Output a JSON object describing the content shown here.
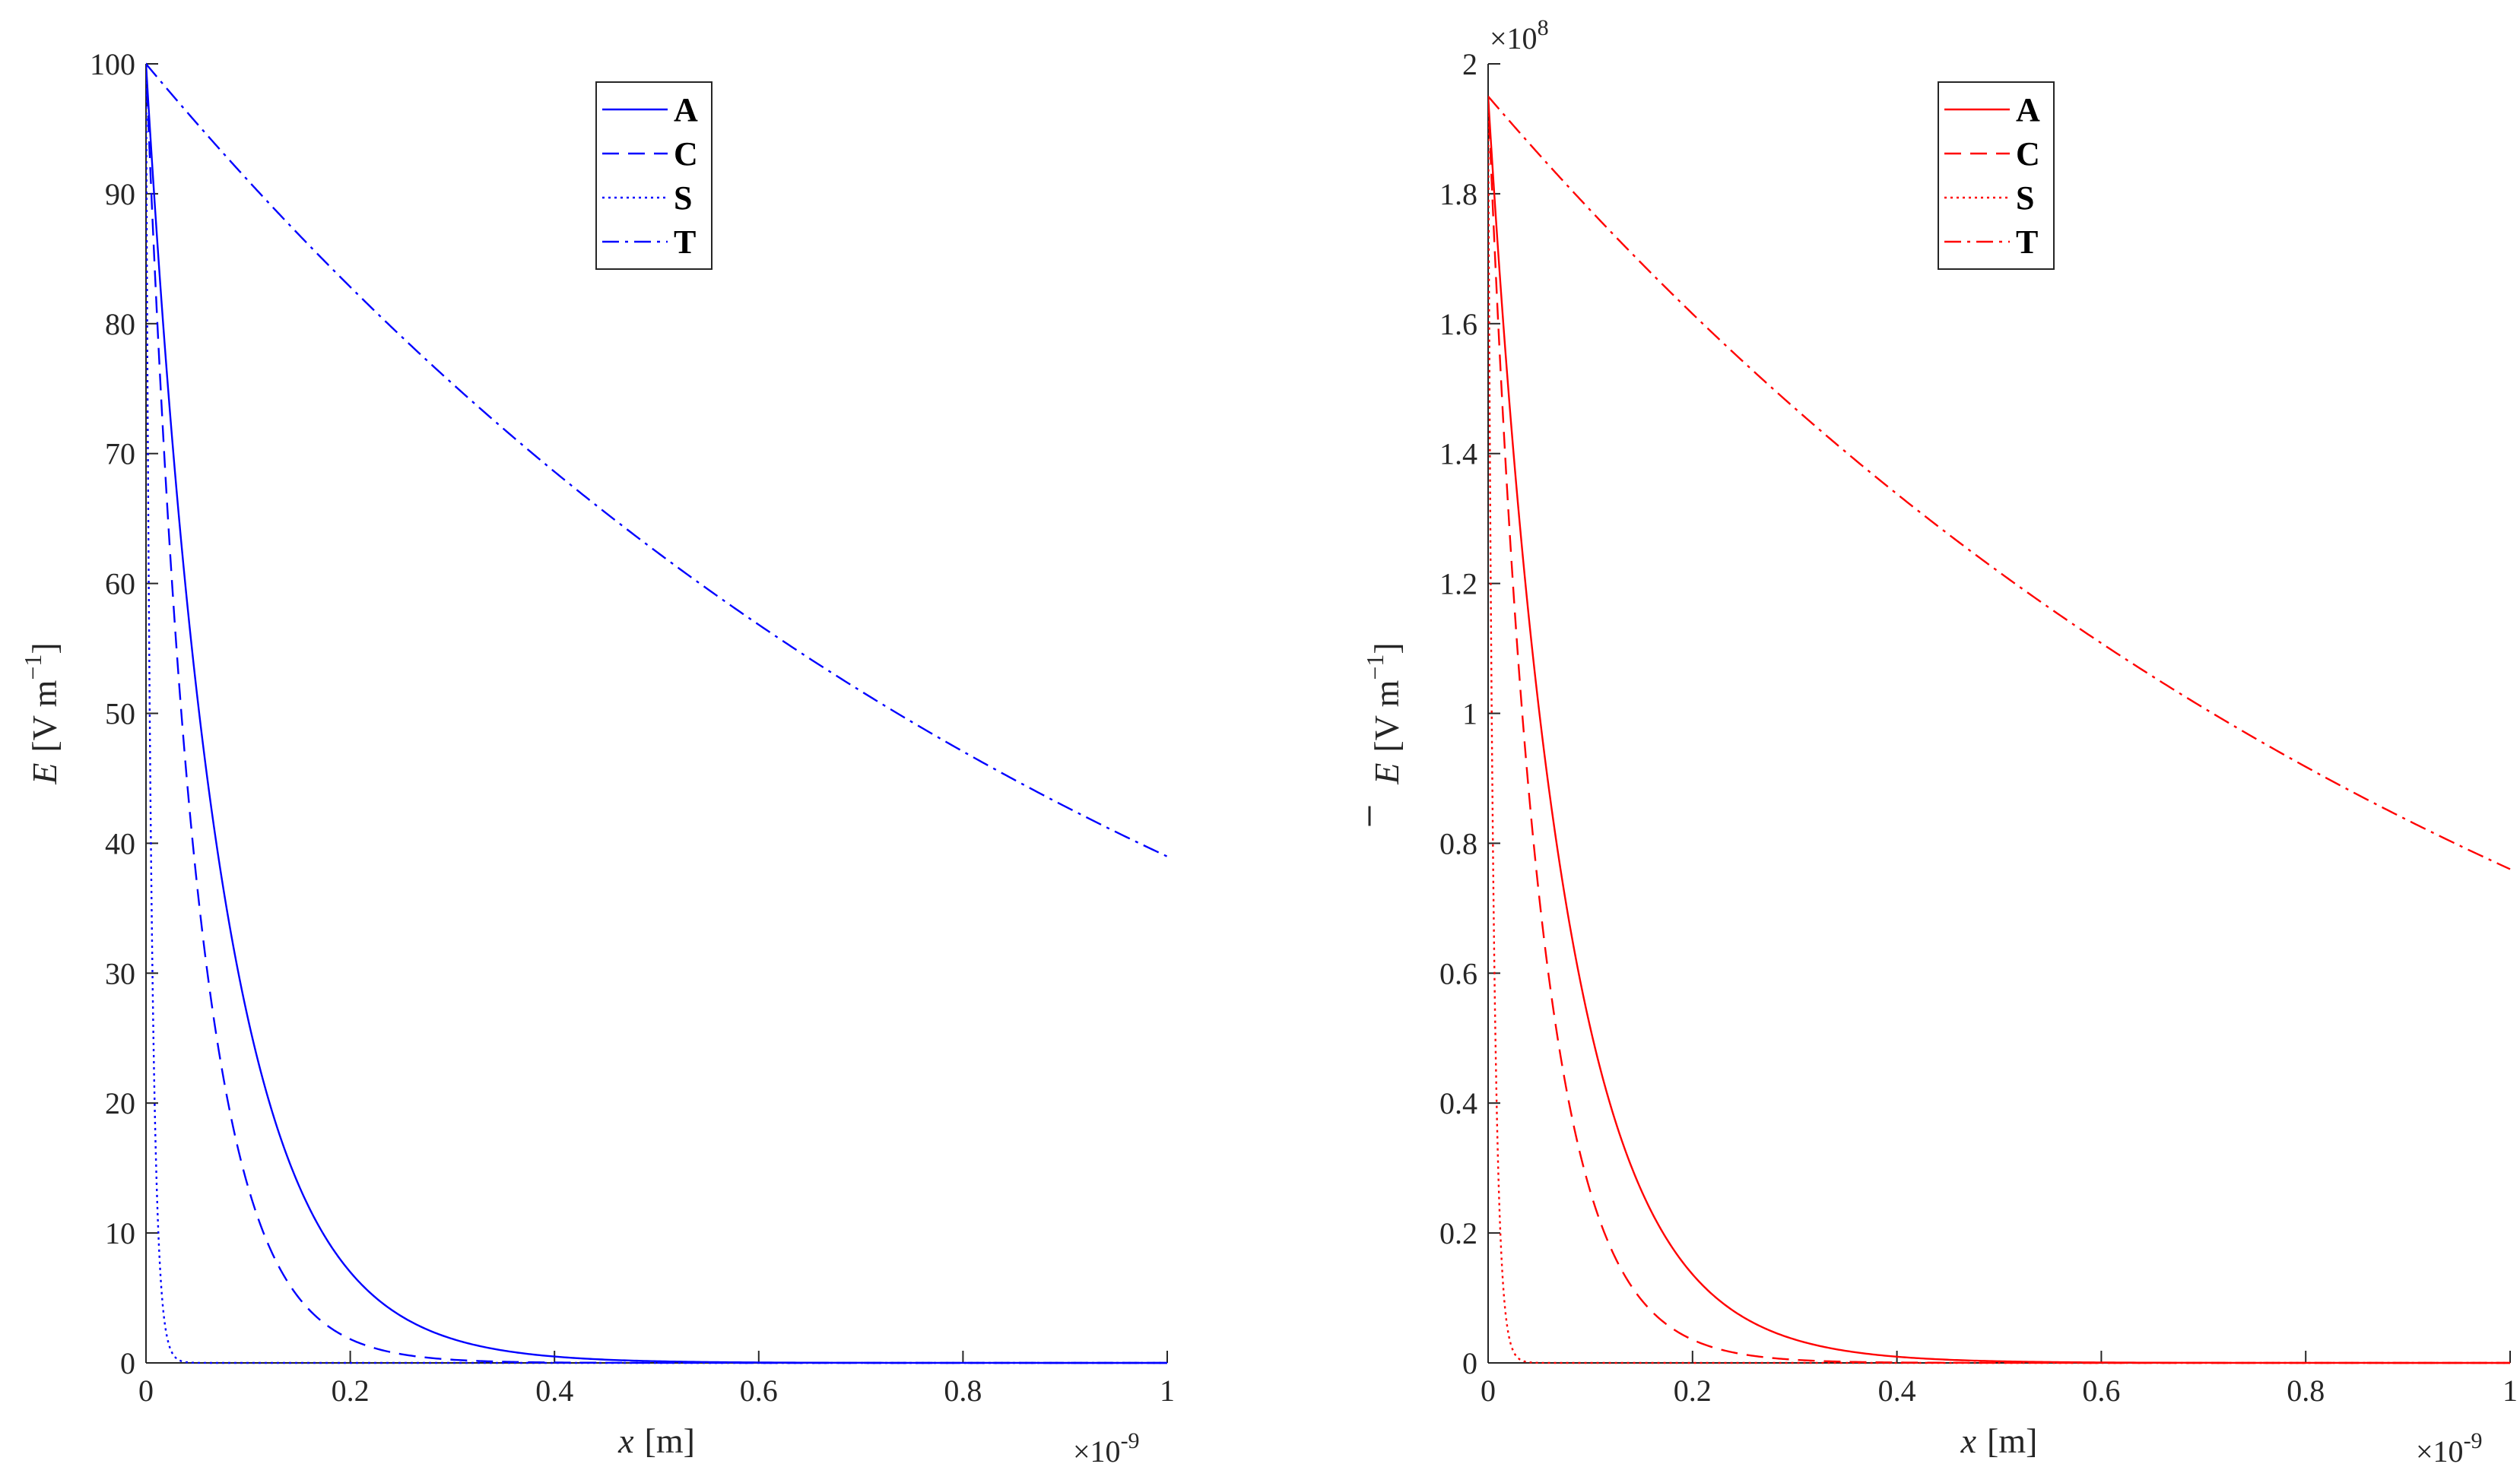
{
  "chart_data": [
    {
      "type": "line",
      "xlabel_var": "x",
      "xlabel_unit": "[m]",
      "ylabel_var": "E",
      "ylabel_unit_pre": "[V m",
      "ylabel_unit_sup": "−1",
      "ylabel_unit_post": "]",
      "ylabel_overline": false,
      "x_exponent_label": "×10",
      "x_exponent_sup": "-9",
      "y_exponent_label": "",
      "y_exponent_sup": "",
      "xlim": [
        0,
        1
      ],
      "ylim": [
        0,
        100
      ],
      "xticks": [
        0,
        0.2,
        0.4,
        0.6,
        0.8,
        1
      ],
      "xtick_labels": [
        "0",
        "0.2",
        "0.4",
        "0.6",
        "0.8",
        "1"
      ],
      "yticks": [
        0,
        10,
        20,
        30,
        40,
        50,
        60,
        70,
        80,
        90,
        100
      ],
      "ytick_labels": [
        "0",
        "10",
        "20",
        "30",
        "40",
        "50",
        "60",
        "70",
        "80",
        "90",
        "100"
      ],
      "color": "#0000ff",
      "legend_position": "top-center",
      "series": [
        {
          "name": "A",
          "style": "solid",
          "y0": 100,
          "decay": 13.3
        },
        {
          "name": "C",
          "style": "dashed",
          "y0": 100,
          "decay": 20
        },
        {
          "name": "S",
          "style": "dotted",
          "y0": 100,
          "decay": 190
        },
        {
          "name": "T",
          "style": "dashdot",
          "y0": 100,
          "decay": 0.942
        }
      ]
    },
    {
      "type": "line",
      "xlabel_var": "x",
      "xlabel_unit": "[m]",
      "ylabel_var": "E",
      "ylabel_unit_pre": "[V m",
      "ylabel_unit_sup": "−1",
      "ylabel_unit_post": "]",
      "ylabel_overline": true,
      "x_exponent_label": "×10",
      "x_exponent_sup": "-9",
      "y_exponent_label": "×10",
      "y_exponent_sup": "8",
      "xlim": [
        0,
        1
      ],
      "ylim": [
        0,
        2
      ],
      "xticks": [
        0,
        0.2,
        0.4,
        0.6,
        0.8,
        1
      ],
      "xtick_labels": [
        "0",
        "0.2",
        "0.4",
        "0.6",
        "0.8",
        "1"
      ],
      "yticks": [
        0,
        0.2,
        0.4,
        0.6,
        0.8,
        1,
        1.2,
        1.4,
        1.6,
        1.8,
        2
      ],
      "ytick_labels": [
        "0",
        "0.2",
        "0.4",
        "0.6",
        "0.8",
        "1",
        "1.2",
        "1.4",
        "1.6",
        "1.8",
        "2"
      ],
      "color": "#ff0000",
      "legend_position": "top-center",
      "series": [
        {
          "name": "A",
          "style": "solid",
          "y0": 1.95,
          "decay": 13.3
        },
        {
          "name": "C",
          "style": "dashed",
          "y0": 1.95,
          "decay": 20
        },
        {
          "name": "S",
          "style": "dotted",
          "y0": 1.95,
          "decay": 190
        },
        {
          "name": "T",
          "style": "dashdot",
          "y0": 1.95,
          "decay": 0.942
        }
      ]
    }
  ]
}
